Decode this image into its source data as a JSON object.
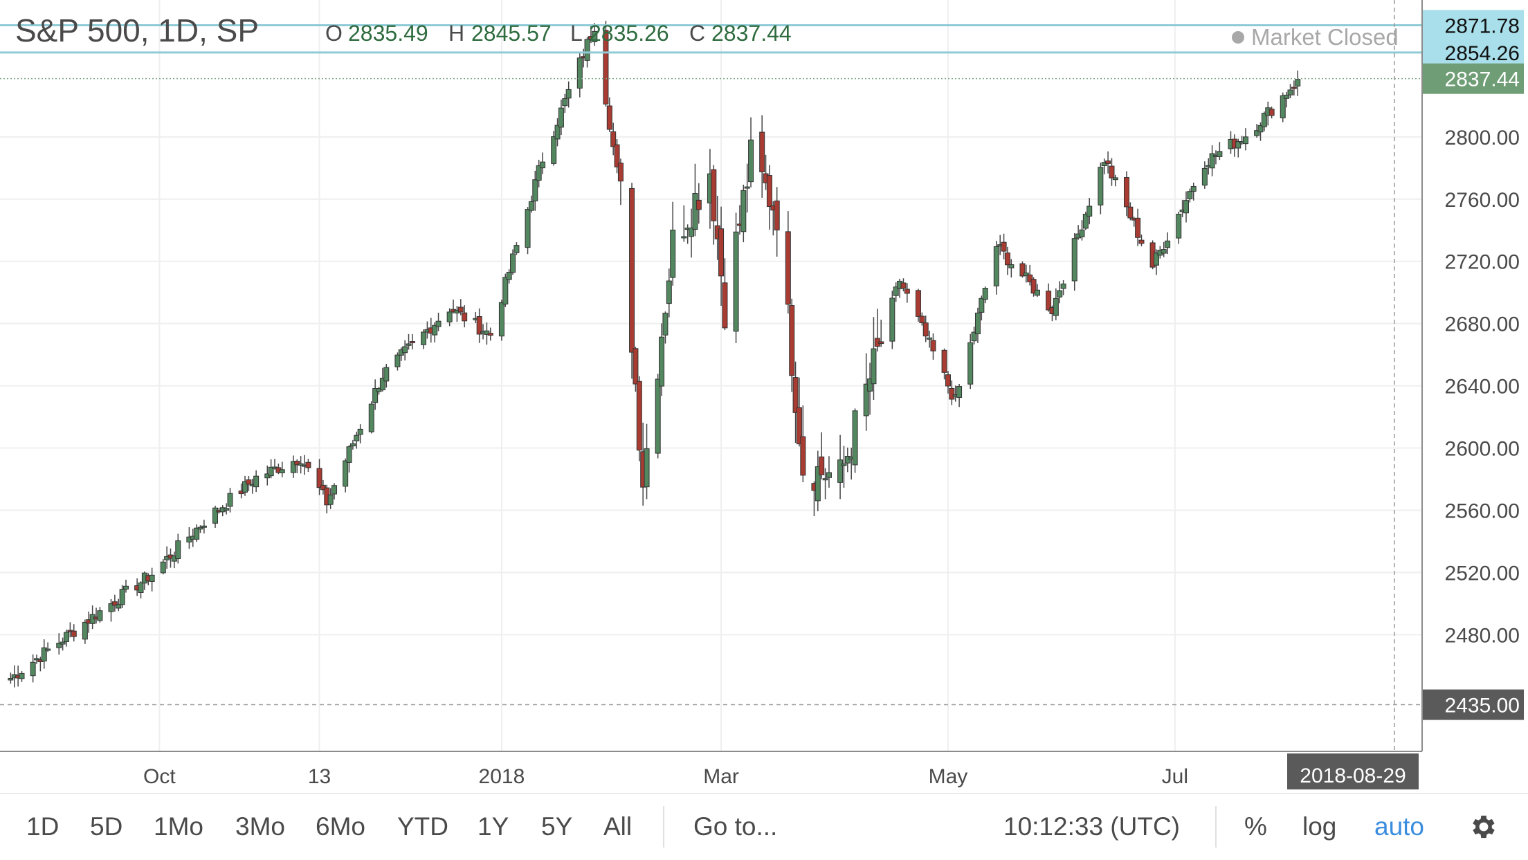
{
  "header": {
    "symbol": "S&P 500, 1D, SP",
    "ohlc": [
      {
        "label": "O",
        "value": "2835.49"
      },
      {
        "label": "H",
        "value": "2845.57"
      },
      {
        "label": "L",
        "value": "2835.26"
      },
      {
        "label": "C",
        "value": "2837.44"
      }
    ],
    "market_status": "Market Closed"
  },
  "chart_data": {
    "type": "candlestick",
    "title": "S&P 500, 1D, SP",
    "y_range": [
      2405,
      2888
    ],
    "y_ticks": [
      "2480.00",
      "2520.00",
      "2560.00",
      "2600.00",
      "2640.00",
      "2680.00",
      "2720.00",
      "2760.00",
      "2800.00"
    ],
    "x_ticks": [
      "Oct",
      "13",
      "2018",
      "Mar",
      "May",
      "Jul"
    ],
    "price_tags": [
      {
        "value": "2871.78",
        "kind": "alert"
      },
      {
        "value": "2854.26",
        "kind": "alert"
      },
      {
        "value": "2837.44",
        "kind": "last"
      },
      {
        "value": "2435.00",
        "kind": "crosshair"
      }
    ],
    "date_label": "2018-08-29",
    "colors": {
      "up": "#53875f",
      "down": "#a83b32",
      "alert_line": "#8fcbd6",
      "alert_tag": "#a8dfea",
      "last_tag": "#6f9e76",
      "cross_tag": "#5a5a5a"
    },
    "anchors": [
      {
        "d": "2017-08-22",
        "c": 2452
      },
      {
        "d": "2017-09-11",
        "c": 2488
      },
      {
        "d": "2017-09-29",
        "c": 2519
      },
      {
        "d": "2017-10-13",
        "c": 2553
      },
      {
        "d": "2017-10-27",
        "c": 2581
      },
      {
        "d": "2017-11-08",
        "c": 2594
      },
      {
        "d": "2017-11-15",
        "c": 2565
      },
      {
        "d": "2017-11-30",
        "c": 2647
      },
      {
        "d": "2017-12-18",
        "c": 2690
      },
      {
        "d": "2017-12-29",
        "c": 2673
      },
      {
        "d": "2018-01-12",
        "c": 2786
      },
      {
        "d": "2018-01-26",
        "c": 2872
      },
      {
        "d": "2018-02-02",
        "c": 2762
      },
      {
        "d": "2018-02-08",
        "c": 2581
      },
      {
        "d": "2018-02-16",
        "c": 2732
      },
      {
        "d": "2018-02-26",
        "c": 2779
      },
      {
        "d": "2018-03-02",
        "c": 2691
      },
      {
        "d": "2018-03-09",
        "c": 2786
      },
      {
        "d": "2018-03-16",
        "c": 2752
      },
      {
        "d": "2018-03-23",
        "c": 2588
      },
      {
        "d": "2018-04-02",
        "c": 2581
      },
      {
        "d": "2018-04-18",
        "c": 2708
      },
      {
        "d": "2018-05-03",
        "c": 2630
      },
      {
        "d": "2018-05-14",
        "c": 2730
      },
      {
        "d": "2018-05-29",
        "c": 2689
      },
      {
        "d": "2018-06-12",
        "c": 2786
      },
      {
        "d": "2018-06-25",
        "c": 2717
      },
      {
        "d": "2018-07-09",
        "c": 2784
      },
      {
        "d": "2018-07-20",
        "c": 2801
      },
      {
        "d": "2018-07-27",
        "c": 2818
      },
      {
        "d": "2018-08-03",
        "c": 2837
      }
    ]
  },
  "toolbar": {
    "ranges": [
      "1D",
      "5D",
      "1Mo",
      "3Mo",
      "6Mo",
      "YTD",
      "1Y",
      "5Y",
      "All"
    ],
    "goto": "Go to...",
    "clock": "10:12:33 (UTC)",
    "percent": "%",
    "log": "log",
    "auto": "auto",
    "settings_icon": "gear-icon"
  }
}
